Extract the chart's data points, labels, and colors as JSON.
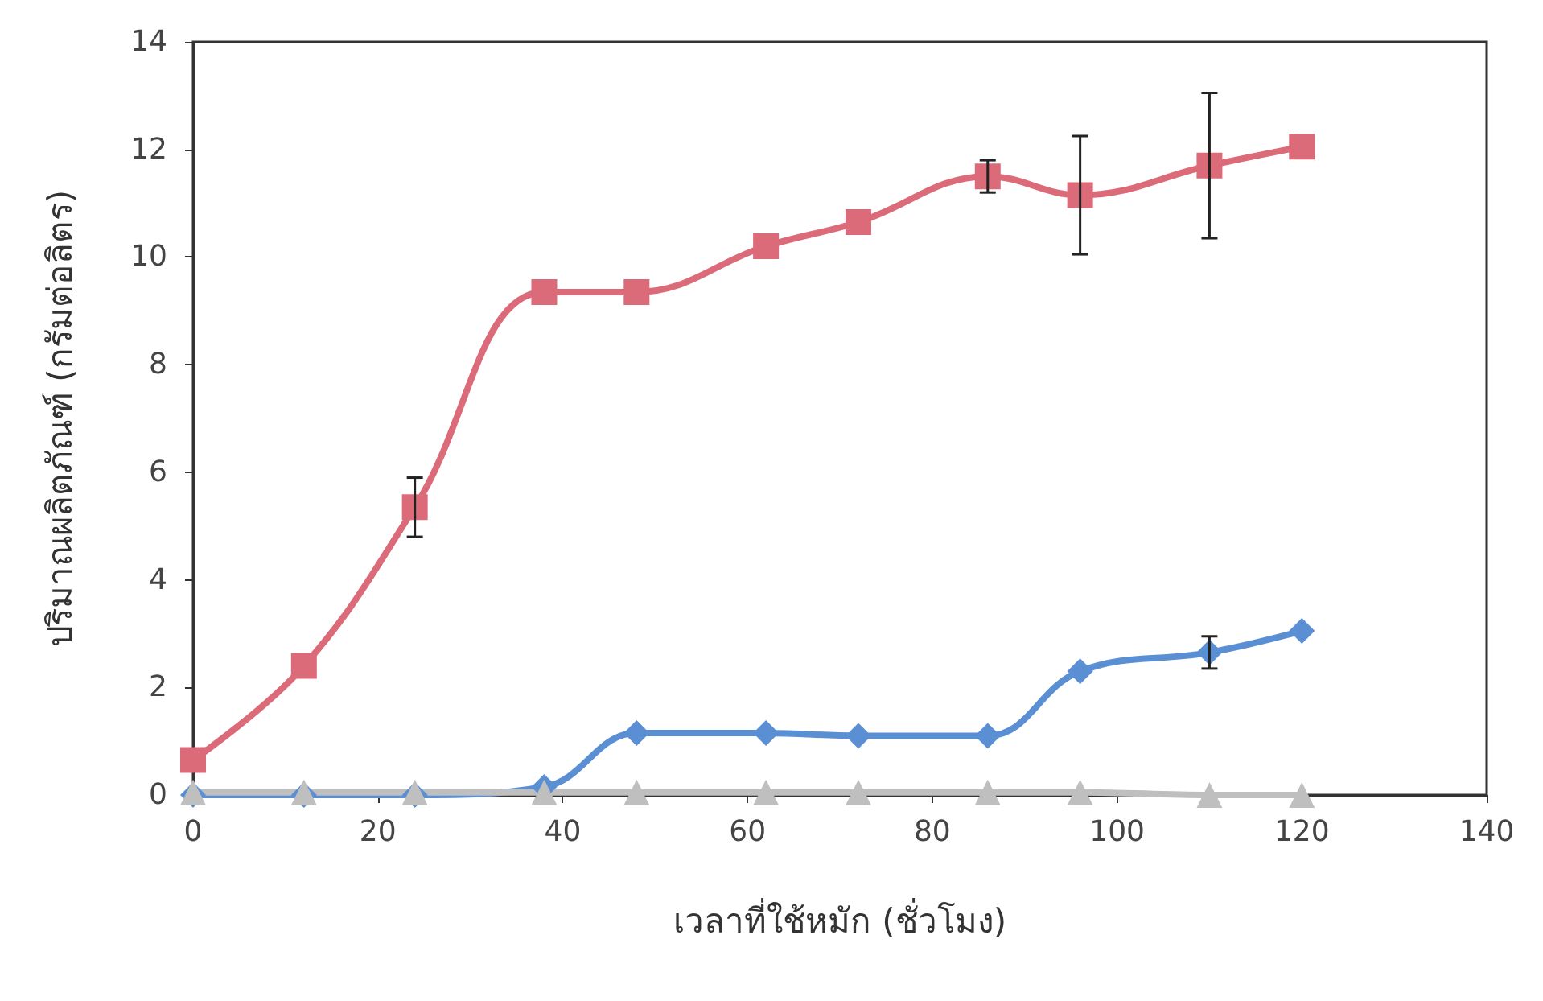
{
  "chart_data": {
    "type": "line",
    "xlabel": "เวลาที่ใช้หมัก (ชั่วโมง)",
    "ylabel": "ปริมาณผลิตภัณฑ์ (กรัมต่อลิตร)",
    "x": [
      0,
      12,
      24,
      38,
      48,
      62,
      72,
      86,
      96,
      110,
      120
    ],
    "series": [
      {
        "color": "#dc6b7a",
        "marker": "square",
        "values": [
          0.65,
          2.4,
          5.35,
          9.35,
          9.35,
          10.2,
          10.65,
          11.5,
          11.15,
          11.7,
          12.05
        ],
        "errors": [
          null,
          null,
          0.55,
          null,
          null,
          null,
          null,
          0.3,
          1.1,
          1.35,
          null
        ]
      },
      {
        "color": "#5b8fd4",
        "marker": "diamond",
        "values": [
          0,
          0,
          0,
          0.15,
          1.15,
          1.15,
          1.1,
          1.1,
          2.3,
          2.65,
          3.05
        ],
        "errors": [
          null,
          null,
          null,
          null,
          null,
          null,
          null,
          null,
          null,
          0.3,
          null
        ]
      },
      {
        "color": "#bfbfbf",
        "marker": "triangle",
        "values": [
          0.05,
          0.05,
          0.05,
          0.05,
          0.05,
          0.05,
          0.05,
          0.05,
          0.05,
          0,
          0
        ]
      }
    ],
    "xlim": [
      0,
      140
    ],
    "xticks": [
      0,
      20,
      40,
      60,
      80,
      100,
      120,
      140
    ],
    "ylim": [
      0,
      14
    ],
    "yticks": [
      0,
      2,
      4,
      6,
      8,
      10,
      12,
      14
    ]
  }
}
